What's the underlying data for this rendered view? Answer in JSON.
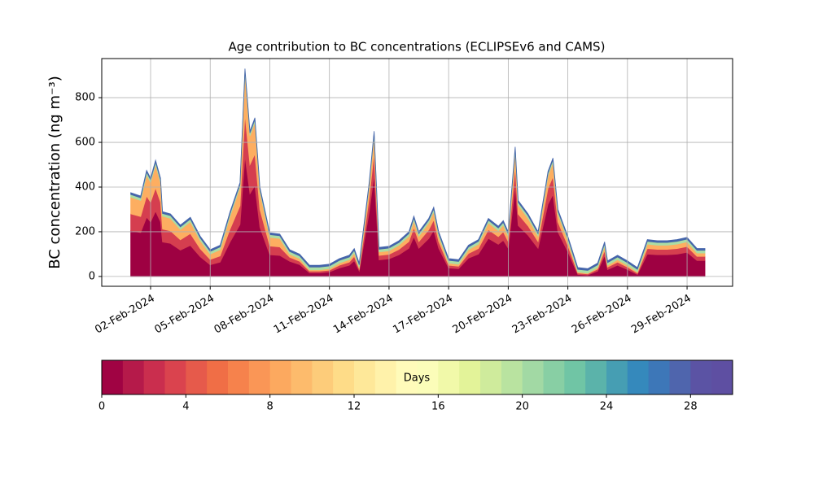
{
  "chart_data": {
    "type": "stacked_area",
    "title": "Age contribution to BC concentrations (ECLIPSEv6 and CAMS)",
    "ylabel": "BC concentration (ng m⁻³)",
    "x": [
      "2024-02-01 00:00",
      "2024-02-01 12:00",
      "2024-02-01 19:12",
      "2024-02-02 00:00",
      "2024-02-02 06:00",
      "2024-02-02 12:00",
      "2024-02-02 14:24",
      "2024-02-03 00:00",
      "2024-02-03 12:00",
      "2024-02-04 00:00",
      "2024-02-04 12:00",
      "2024-02-05 00:00",
      "2024-02-05 12:00",
      "2024-02-06 00:00",
      "2024-02-06 12:00",
      "2024-02-06 18:00",
      "2024-02-07 00:00",
      "2024-02-07 06:00",
      "2024-02-07 12:00",
      "2024-02-08 00:00",
      "2024-02-08 12:00",
      "2024-02-09 00:00",
      "2024-02-09 12:00",
      "2024-02-10 00:00",
      "2024-02-10 12:00",
      "2024-02-11 00:00",
      "2024-02-11 12:00",
      "2024-02-12 00:00",
      "2024-02-12 06:00",
      "2024-02-12 12:00",
      "2024-02-13 00:00",
      "2024-02-13 06:00",
      "2024-02-13 12:00",
      "2024-02-14 00:00",
      "2024-02-14 12:00",
      "2024-02-15 00:00",
      "2024-02-15 06:00",
      "2024-02-15 12:00",
      "2024-02-16 00:00",
      "2024-02-16 06:00",
      "2024-02-16 12:00",
      "2024-02-17 00:00",
      "2024-02-17 12:00",
      "2024-02-18 00:00",
      "2024-02-18 12:00",
      "2024-02-19 00:00",
      "2024-02-19 12:00",
      "2024-02-19 18:00",
      "2024-02-20 00:00",
      "2024-02-20 08:24",
      "2024-02-20 12:00",
      "2024-02-21 00:00",
      "2024-02-21 12:00",
      "2024-02-22 00:00",
      "2024-02-22 06:00",
      "2024-02-22 12:00",
      "2024-02-23 00:00",
      "2024-02-23 12:00",
      "2024-02-24 00:00",
      "2024-02-24 12:00",
      "2024-02-24 20:24",
      "2024-02-25 00:00",
      "2024-02-25 12:00",
      "2024-02-26 00:00",
      "2024-02-26 12:00",
      "2024-02-27 00:00",
      "2024-02-27 12:00",
      "2024-02-28 00:00",
      "2024-02-28 12:00",
      "2024-02-29 00:00",
      "2024-02-29 12:00",
      "2024-02-29 21:36"
    ],
    "series": [
      {
        "color": "#9e0142",
        "values": [
          205,
          196,
          265,
          244,
          292,
          244,
          154,
          148,
          118,
          139,
          88,
          52,
          64,
          154,
          232,
          538,
          370,
          406,
          220,
          97,
          94,
          68,
          53,
          16,
          16,
          20,
          38,
          50,
          71,
          24,
          287,
          454,
          74,
          79,
          97,
          126,
          177,
          126,
          170,
          206,
          126,
          38,
          35,
          82,
          100,
          170,
          144,
          162,
          126,
          403,
          228,
          184,
          126,
          323,
          366,
          199,
          111,
          9,
          6,
          24,
          93,
          31,
          50,
          31,
          9,
          100,
          97,
          97,
          100,
          108,
          71,
          71
        ]
      },
      {
        "color": "#d53e4f",
        "values": [
          75,
          72,
          95,
          88,
          104,
          88,
          58,
          56,
          46,
          53,
          36,
          24,
          28,
          58,
          84,
          186,
          130,
          142,
          80,
          39,
          38,
          18,
          15,
          8,
          8,
          8,
          12,
          14,
          19,
          9,
          63,
          98,
          20,
          20,
          24,
          30,
          41,
          30,
          39,
          47,
          30,
          12,
          11,
          21,
          25,
          39,
          34,
          38,
          30,
          87,
          51,
          42,
          30,
          71,
          80,
          45,
          27,
          6,
          5,
          9,
          23,
          11,
          14,
          11,
          6,
          25,
          24,
          24,
          25,
          26,
          19,
          19
        ]
      },
      {
        "color": "#fdae61",
        "values": [
          75,
          72,
          95,
          88,
          104,
          88,
          58,
          56,
          46,
          53,
          36,
          24,
          28,
          58,
          84,
          186,
          130,
          142,
          80,
          39,
          38,
          14,
          12,
          6,
          6,
          7,
          10,
          11,
          15,
          7,
          50,
          78,
          16,
          16,
          19,
          24,
          32,
          24,
          31,
          37,
          24,
          10,
          9,
          17,
          20,
          31,
          27,
          30,
          24,
          70,
          41,
          34,
          24,
          56,
          64,
          36,
          22,
          5,
          4,
          7,
          19,
          8,
          11,
          8,
          5,
          20,
          19,
          19,
          20,
          21,
          15,
          15
        ]
      },
      {
        "color": "#abdda4",
        "values": [
          12,
          12,
          12,
          12,
          12,
          12,
          12,
          12,
          12,
          12,
          12,
          12,
          12,
          12,
          12,
          12,
          12,
          12,
          12,
          12,
          12,
          12,
          12,
          12,
          12,
          12,
          12,
          12,
          12,
          12,
          12,
          12,
          12,
          12,
          12,
          12,
          12,
          12,
          12,
          12,
          12,
          12,
          12,
          12,
          12,
          12,
          12,
          12,
          12,
          12,
          12,
          12,
          12,
          12,
          12,
          12,
          12,
          12,
          12,
          12,
          12,
          12,
          12,
          12,
          12,
          12,
          12,
          12,
          12,
          12,
          12,
          12
        ]
      },
      {
        "color": "#4565ab",
        "values": [
          8,
          8,
          8,
          8,
          8,
          8,
          8,
          8,
          8,
          8,
          8,
          8,
          8,
          8,
          8,
          8,
          8,
          8,
          8,
          8,
          8,
          8,
          8,
          8,
          8,
          8,
          8,
          8,
          8,
          8,
          8,
          8,
          8,
          8,
          8,
          8,
          8,
          8,
          8,
          8,
          8,
          8,
          8,
          8,
          8,
          8,
          8,
          8,
          8,
          8,
          8,
          8,
          8,
          8,
          8,
          8,
          8,
          8,
          8,
          8,
          8,
          8,
          8,
          8,
          8,
          8,
          8,
          8,
          8,
          8,
          8,
          8
        ]
      }
    ],
    "xlim": [
      "2024-01-30 13:00",
      "2024-03-02 07:00"
    ],
    "xticks": [
      {
        "value": "2024-02-02",
        "label": "02-Feb-2024"
      },
      {
        "value": "2024-02-05",
        "label": "05-Feb-2024"
      },
      {
        "value": "2024-02-08",
        "label": "08-Feb-2024"
      },
      {
        "value": "2024-02-11",
        "label": "11-Feb-2024"
      },
      {
        "value": "2024-02-14",
        "label": "14-Feb-2024"
      },
      {
        "value": "2024-02-17",
        "label": "17-Feb-2024"
      },
      {
        "value": "2024-02-20",
        "label": "20-Feb-2024"
      },
      {
        "value": "2024-02-23",
        "label": "23-Feb-2024"
      },
      {
        "value": "2024-02-26",
        "label": "26-Feb-2024"
      },
      {
        "value": "2024-02-29",
        "label": "29-Feb-2024"
      }
    ],
    "ylim": [
      -44,
      975
    ],
    "yticks": [
      0,
      200,
      400,
      600,
      800
    ],
    "grid": true,
    "colorbar": {
      "label": "Days",
      "lim": [
        0,
        30
      ],
      "ticks": [
        0,
        4,
        8,
        12,
        16,
        20,
        24,
        28
      ],
      "colors": [
        "#a00343",
        "#b51a4a",
        "#ca2e4e",
        "#da434e",
        "#e65a4b",
        "#f06e46",
        "#f6824c",
        "#fa9656",
        "#fca95f",
        "#fdbb6c",
        "#fdcc7a",
        "#fedc88",
        "#fee899",
        "#fff2aa",
        "#fffbba",
        "#fbfdb9",
        "#f1f9a9",
        "#e3f399",
        "#cfeb9c",
        "#b9e3a0",
        "#a2d9a4",
        "#88cfa4",
        "#70c5a5",
        "#5bb3aa",
        "#469eb3",
        "#3589bc",
        "#3d77b8",
        "#4f65ad",
        "#5b53a4",
        "#5e4fa2"
      ]
    }
  }
}
